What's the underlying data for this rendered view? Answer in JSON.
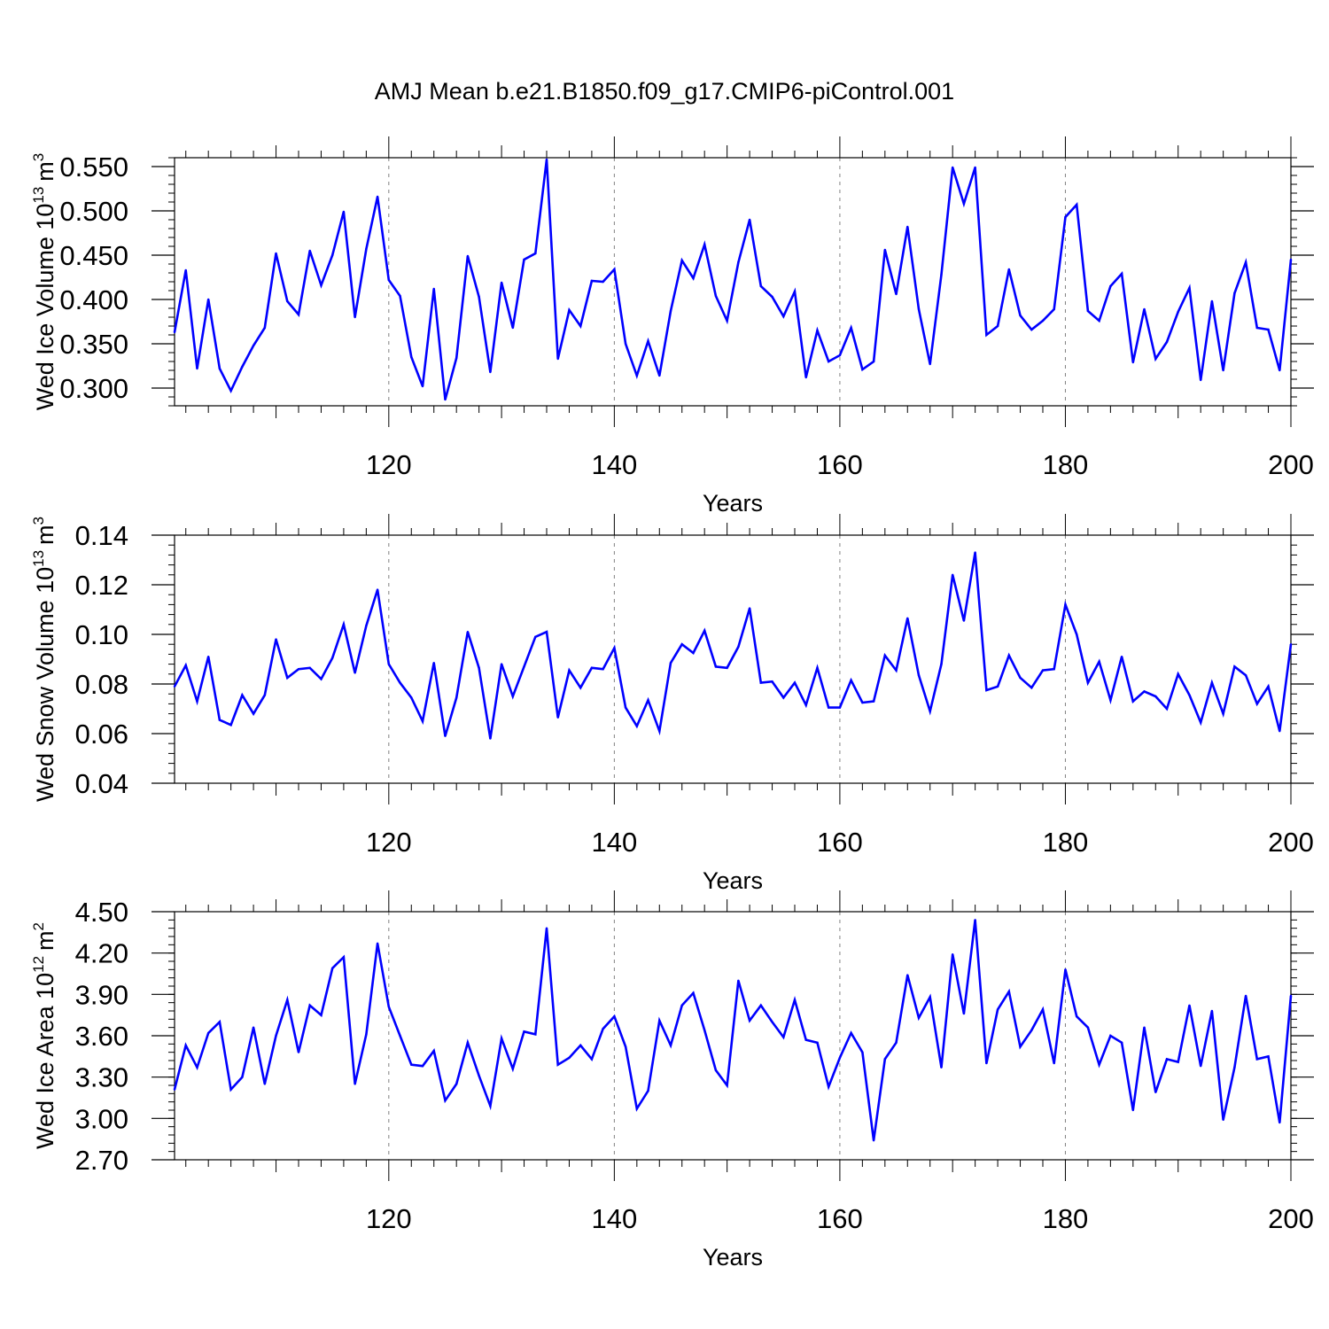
{
  "title": "AMJ Mean b.e21.B1850.f09_g17.CMIP6-piControl.001",
  "colors": {
    "series": "#0000ff",
    "axis": "#000000",
    "grid": "#808080"
  },
  "chart_data": [
    {
      "type": "line",
      "ylabel_main": "Wed Ice Volume 10",
      "ylabel_exp": "13",
      "ylabel_unit": "m",
      "ylabel_unit_exp": "3",
      "xlabel": "Years",
      "xlim": [
        101,
        200
      ],
      "ylim": [
        0.28,
        0.56
      ],
      "yticks": [
        "0.300",
        "0.350",
        "0.400",
        "0.450",
        "0.500",
        "0.550"
      ],
      "ytick_values": [
        0.3,
        0.35,
        0.4,
        0.45,
        0.5,
        0.55
      ],
      "xticks": [
        "120",
        "140",
        "160",
        "180",
        "200"
      ],
      "xtick_values": [
        120,
        140,
        160,
        180,
        200
      ],
      "x_start": 101,
      "values": [
        0.363,
        0.433,
        0.322,
        0.4,
        0.322,
        0.297,
        0.324,
        0.348,
        0.368,
        0.452,
        0.398,
        0.383,
        0.455,
        0.416,
        0.45,
        0.499,
        0.38,
        0.457,
        0.516,
        0.422,
        0.404,
        0.335,
        0.302,
        0.412,
        0.287,
        0.334,
        0.449,
        0.403,
        0.318,
        0.419,
        0.368,
        0.445,
        0.452,
        0.558,
        0.333,
        0.388,
        0.37,
        0.421,
        0.42,
        0.434,
        0.35,
        0.314,
        0.353,
        0.314,
        0.387,
        0.444,
        0.424,
        0.462,
        0.404,
        0.376,
        0.442,
        0.49,
        0.415,
        0.403,
        0.381,
        0.409,
        0.312,
        0.365,
        0.33,
        0.337,
        0.368,
        0.321,
        0.33,
        0.456,
        0.406,
        0.482,
        0.389,
        0.327,
        0.428,
        0.549,
        0.508,
        0.549,
        0.36,
        0.37,
        0.434,
        0.382,
        0.366,
        0.376,
        0.389,
        0.493,
        0.507,
        0.387,
        0.376,
        0.415,
        0.429,
        0.329,
        0.389,
        0.333,
        0.352,
        0.386,
        0.413,
        0.309,
        0.398,
        0.32,
        0.407,
        0.442,
        0.368,
        0.366,
        0.32,
        0.445
      ]
    },
    {
      "type": "line",
      "ylabel_main": "Wed Snow Volume 10",
      "ylabel_exp": "13",
      "ylabel_unit": "m",
      "ylabel_unit_exp": "3",
      "xlabel": "Years",
      "xlim": [
        101,
        200
      ],
      "ylim": [
        0.04,
        0.14
      ],
      "yticks": [
        "0.04",
        "0.06",
        "0.08",
        "0.10",
        "0.12",
        "0.14"
      ],
      "ytick_values": [
        0.04,
        0.06,
        0.08,
        0.1,
        0.12,
        0.14
      ],
      "xticks": [
        "120",
        "140",
        "160",
        "180",
        "200"
      ],
      "xtick_values": [
        120,
        140,
        160,
        180,
        200
      ],
      "x_start": 101,
      "values": [
        0.079,
        0.0875,
        0.073,
        0.091,
        0.0655,
        0.0635,
        0.0755,
        0.068,
        0.0755,
        0.098,
        0.0825,
        0.086,
        0.0865,
        0.082,
        0.0905,
        0.104,
        0.0845,
        0.1035,
        0.118,
        0.088,
        0.0805,
        0.0745,
        0.065,
        0.0885,
        0.059,
        0.0745,
        0.101,
        0.0865,
        0.058,
        0.088,
        0.075,
        0.087,
        0.099,
        0.101,
        0.0665,
        0.0855,
        0.0785,
        0.0865,
        0.086,
        0.0945,
        0.0705,
        0.063,
        0.0735,
        0.061,
        0.0885,
        0.096,
        0.0925,
        0.1015,
        0.087,
        0.0865,
        0.095,
        0.1105,
        0.0805,
        0.081,
        0.0745,
        0.0805,
        0.0715,
        0.0865,
        0.0705,
        0.0705,
        0.0815,
        0.0725,
        0.073,
        0.0915,
        0.0855,
        0.1065,
        0.0835,
        0.069,
        0.088,
        0.124,
        0.1055,
        0.133,
        0.0775,
        0.079,
        0.0915,
        0.0825,
        0.0785,
        0.0855,
        0.086,
        0.112,
        0.1,
        0.0805,
        0.089,
        0.0735,
        0.091,
        0.073,
        0.077,
        0.075,
        0.07,
        0.084,
        0.0755,
        0.0645,
        0.0805,
        0.068,
        0.087,
        0.0835,
        0.072,
        0.079,
        0.061,
        0.096
      ]
    },
    {
      "type": "line",
      "ylabel_main": "Wed Ice Area 10",
      "ylabel_exp": "12",
      "ylabel_unit": "m",
      "ylabel_unit_exp": "2",
      "xlabel": "Years",
      "xlim": [
        101,
        200
      ],
      "ylim": [
        2.7,
        4.5
      ],
      "yticks": [
        "2.70",
        "3.00",
        "3.30",
        "3.60",
        "3.90",
        "4.20",
        "4.50"
      ],
      "ytick_values": [
        2.7,
        3.0,
        3.3,
        3.6,
        3.9,
        4.2,
        4.5
      ],
      "xticks": [
        "120",
        "140",
        "160",
        "180",
        "200"
      ],
      "xtick_values": [
        120,
        140,
        160,
        180,
        200
      ],
      "x_start": 101,
      "values": [
        3.21,
        3.53,
        3.37,
        3.62,
        3.7,
        3.21,
        3.3,
        3.66,
        3.25,
        3.6,
        3.86,
        3.48,
        3.82,
        3.75,
        4.09,
        4.17,
        3.25,
        3.61,
        4.27,
        3.81,
        3.6,
        3.39,
        3.38,
        3.49,
        3.13,
        3.25,
        3.55,
        3.31,
        3.09,
        3.58,
        3.36,
        3.63,
        3.61,
        4.38,
        3.39,
        3.44,
        3.53,
        3.43,
        3.65,
        3.74,
        3.52,
        3.07,
        3.2,
        3.71,
        3.53,
        3.82,
        3.91,
        3.64,
        3.35,
        3.24,
        4.0,
        3.71,
        3.82,
        3.7,
        3.59,
        3.86,
        3.57,
        3.55,
        3.23,
        3.44,
        3.62,
        3.48,
        2.84,
        3.43,
        3.55,
        4.04,
        3.73,
        3.88,
        3.37,
        4.19,
        3.76,
        4.44,
        3.4,
        3.79,
        3.92,
        3.52,
        3.64,
        3.79,
        3.4,
        4.08,
        3.74,
        3.66,
        3.39,
        3.6,
        3.55,
        3.06,
        3.66,
        3.19,
        3.43,
        3.41,
        3.82,
        3.38,
        3.78,
        2.99,
        3.37,
        3.89,
        3.43,
        3.45,
        2.97,
        3.89
      ]
    }
  ]
}
